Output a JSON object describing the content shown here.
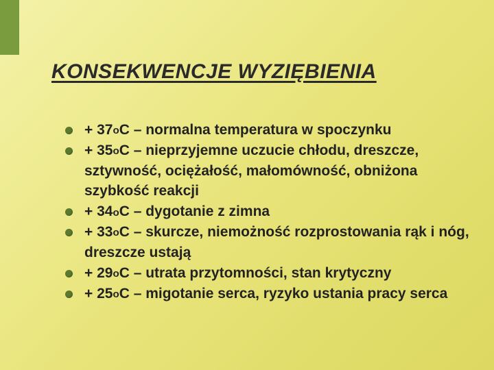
{
  "slide": {
    "background_gradient": [
      "#f4f2a8",
      "#e8e47a",
      "#dcd860"
    ],
    "accent_bar_color": "#7a9c3f",
    "title": "KONSEKWENCJE WYZIĘBIENIA",
    "title_fontsize": 30,
    "title_color": "#2a2a2a",
    "bullet_color": "#5c7a2e",
    "body_fontsize": 21,
    "body_color": "#222",
    "items": [
      "+ 37oC – normalna  temperatura w spoczynku",
      "+ 35oC – nieprzyjemne uczucie chłodu, dreszcze, sztywność, ociężałość, małomówność, obniżona szybkość reakcji",
      "+ 34oC – dygotanie z zimna",
      "+ 33oC – skurcze, niemożność rozprostowania rąk i nóg, dreszcze ustają",
      "+ 29oC – utrata przytomności, stan krytyczny",
      "+ 25oC – migotanie serca, ryzyko ustania pracy serca"
    ]
  }
}
